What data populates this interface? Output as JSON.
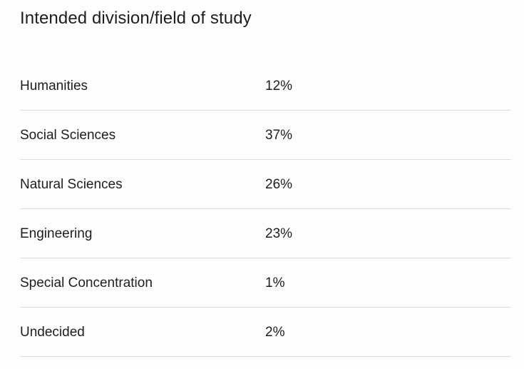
{
  "title": "Intended division/field of study",
  "rows": [
    {
      "label": "Humanities",
      "value": "12%"
    },
    {
      "label": "Social Sciences",
      "value": "37%"
    },
    {
      "label": "Natural Sciences",
      "value": "26%"
    },
    {
      "label": "Engineering",
      "value": "23%"
    },
    {
      "label": "Special Concentration",
      "value": "1%"
    },
    {
      "label": "Undecided",
      "value": "2%"
    }
  ]
}
